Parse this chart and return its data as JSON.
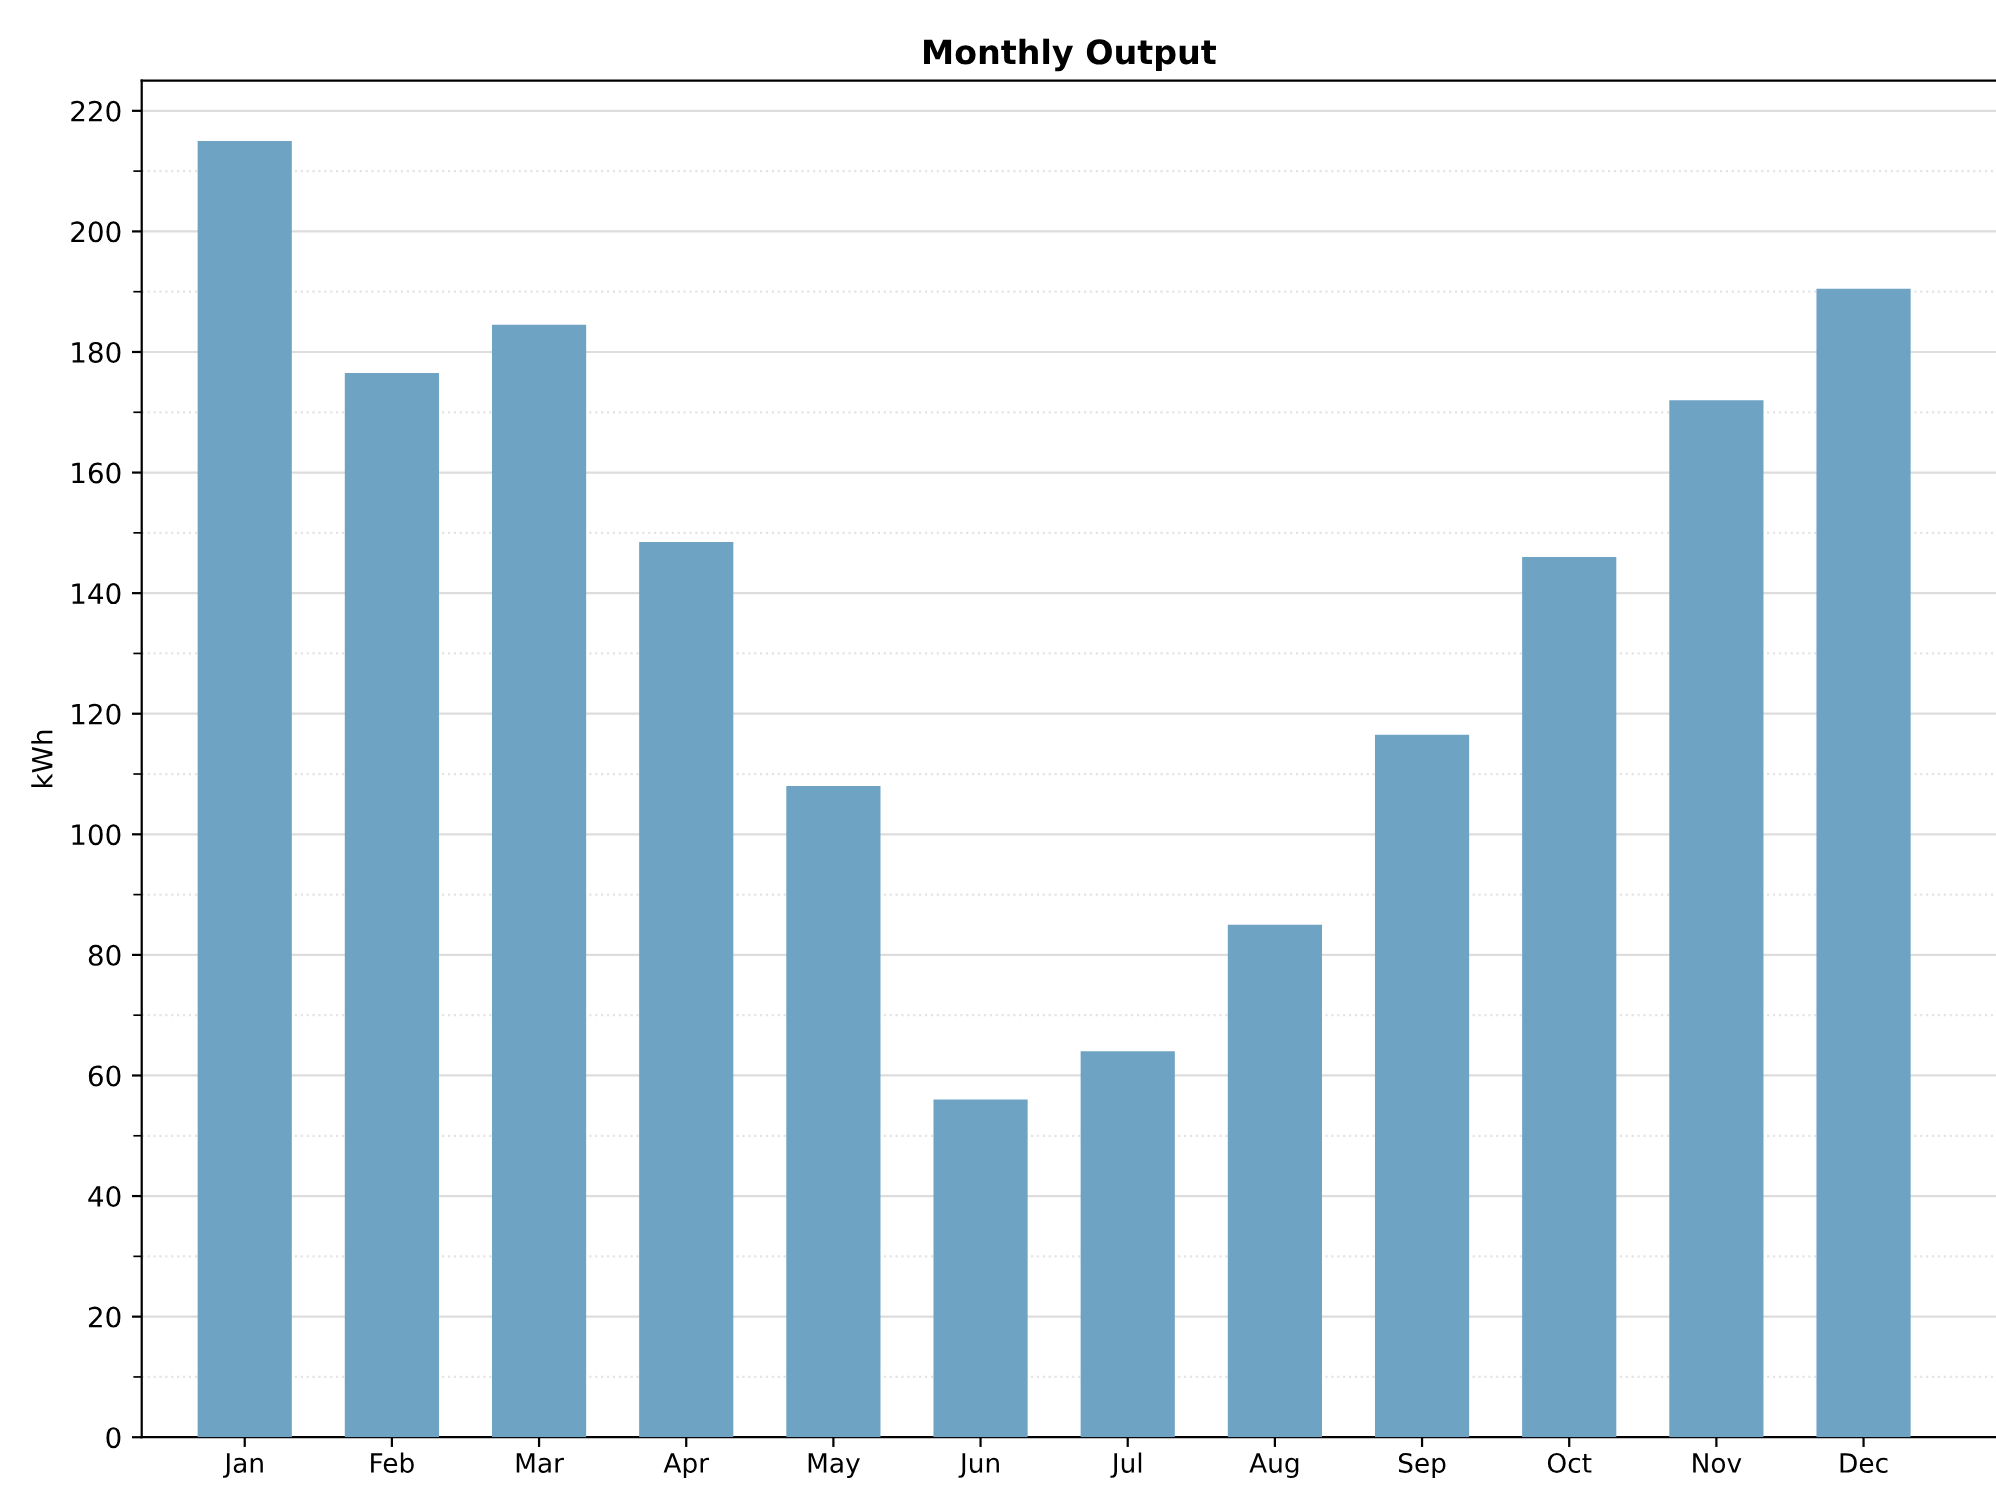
{
  "chart_data": {
    "type": "bar",
    "title": "Monthly Output",
    "ylabel": "kWh",
    "categories": [
      "Jan",
      "Feb",
      "Mar",
      "Apr",
      "May",
      "Jun",
      "Jul",
      "Aug",
      "Sep",
      "Oct",
      "Nov",
      "Dec"
    ],
    "values": [
      215,
      176.5,
      184.5,
      148.5,
      108,
      56,
      64,
      85,
      116.5,
      146,
      172,
      190.5
    ],
    "color": "#6fa3c4",
    "ylim": [
      0,
      225
    ],
    "yticks": [
      0,
      20,
      40,
      60,
      80,
      100,
      120,
      140,
      160,
      180,
      200,
      220
    ],
    "grid": "y",
    "legend": false
  }
}
